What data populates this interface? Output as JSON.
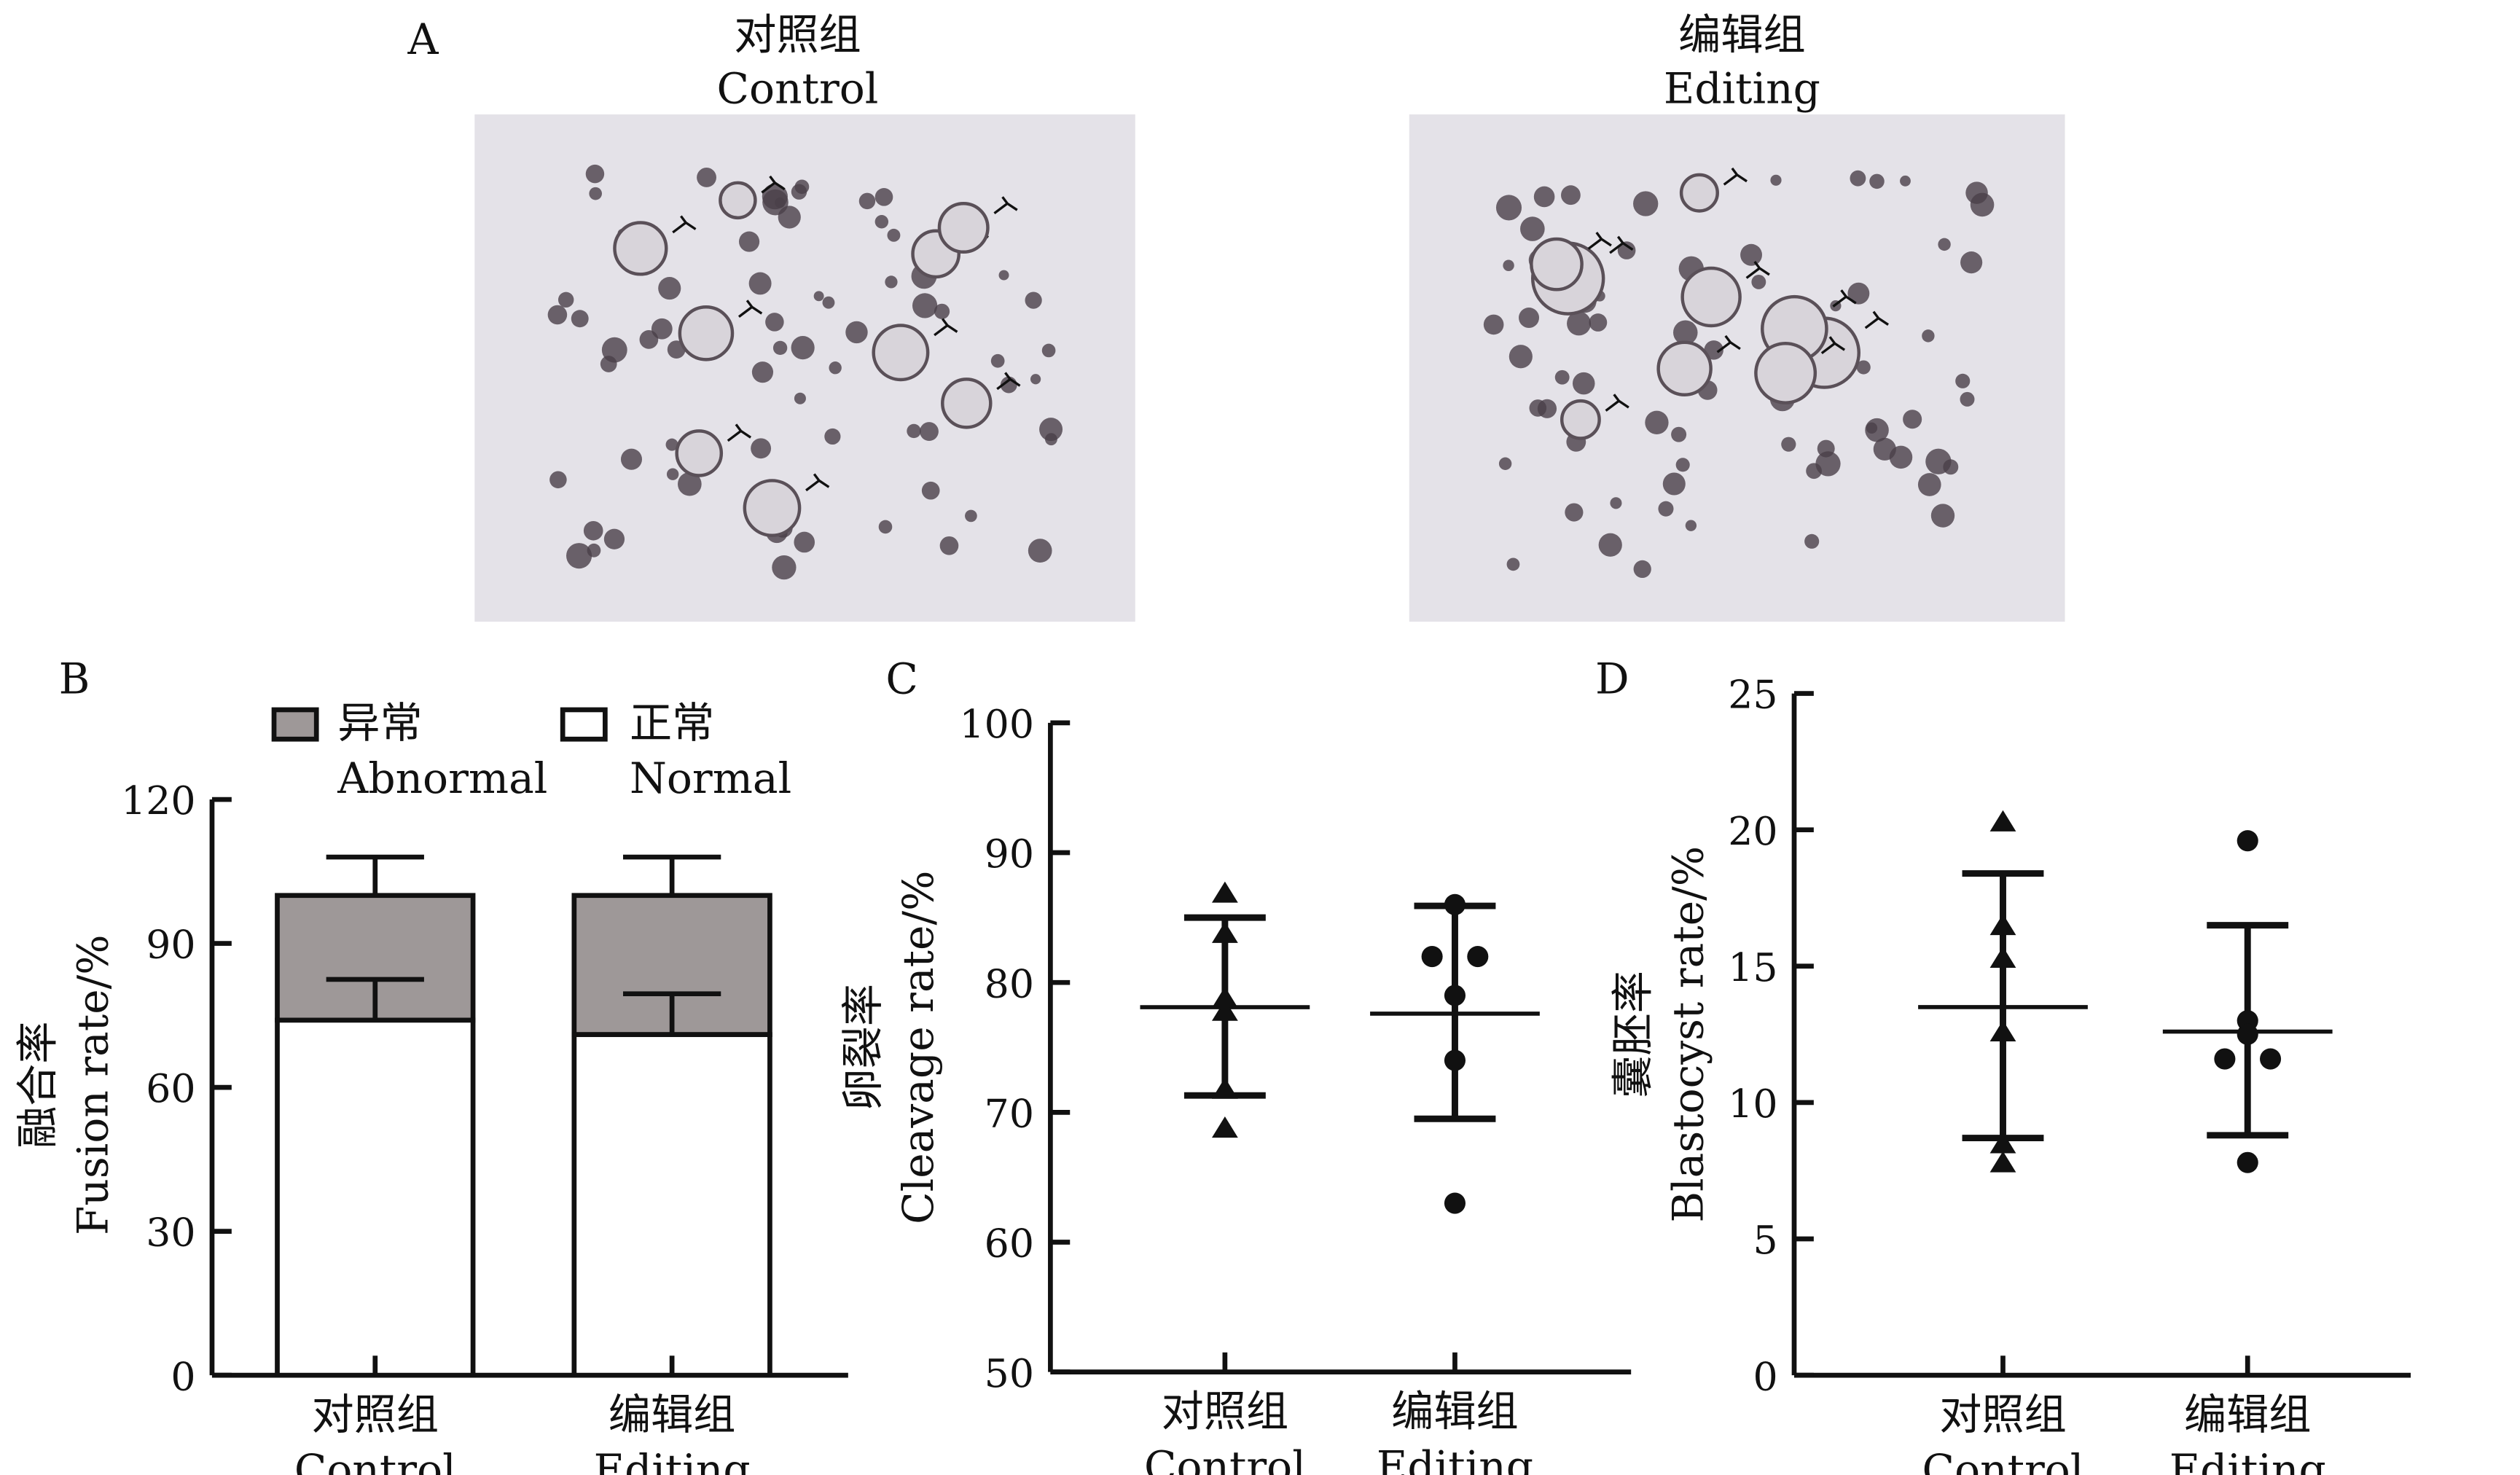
{
  "panels": {
    "a": "A",
    "b": "B",
    "c": "C",
    "d": "D"
  },
  "photos": [
    {
      "title_cn": "对照组",
      "title_en": "Control"
    },
    {
      "title_cn": "编辑组",
      "title_en": "Editing"
    }
  ],
  "colors": {
    "abnormal": "#9e9898",
    "normal": "#ffffff",
    "ink": "#111111",
    "photo_bg": "#e4e2e8"
  },
  "chart_data": [
    {
      "id": "B",
      "type": "bar",
      "stacked": true,
      "categories_cn": [
        "对照组",
        "编辑组"
      ],
      "categories": [
        "Control",
        "Editing"
      ],
      "ylabel_cn": "融合率",
      "ylabel": "Fusion rate/%",
      "ylim": [
        0,
        120
      ],
      "yticks": [
        0,
        30,
        60,
        90,
        120
      ],
      "legend": [
        {
          "cn": "异常",
          "en": "Abnormal"
        },
        {
          "cn": "正常",
          "en": "Normal"
        }
      ],
      "legend_position": "top",
      "series": [
        {
          "name": "Normal",
          "values": [
            74,
            71
          ],
          "err_upper": [
            82.5,
            79.5
          ]
        },
        {
          "name": "Abnormal",
          "values": [
            26,
            29
          ],
          "err_upper": [
            108,
            108
          ]
        }
      ]
    },
    {
      "id": "C",
      "type": "scatter",
      "categories_cn": [
        "对照组",
        "编辑组"
      ],
      "categories": [
        "Control",
        "Editing"
      ],
      "ylabel_cn": "卵裂率",
      "ylabel": "Cleavage rate/%",
      "ylim": [
        50,
        100
      ],
      "yticks": [
        50,
        60,
        70,
        80,
        90,
        100
      ],
      "series": [
        {
          "name": "Control",
          "marker": "triangle",
          "values": [
            86.9,
            83.8,
            78.8,
            77.8,
            71.8,
            68.8
          ],
          "mean": 78.1,
          "sd_high": 85.0,
          "sd_low": 71.3
        },
        {
          "name": "Editing",
          "marker": "circle",
          "values": [
            86.0,
            82.0,
            82.0,
            79.0,
            74.0,
            63.0
          ],
          "mean": 77.6,
          "sd_high": 85.9,
          "sd_low": 69.5
        }
      ]
    },
    {
      "id": "D",
      "type": "scatter",
      "categories_cn": [
        "对照组",
        "编辑组"
      ],
      "categories": [
        "Control",
        "Editing"
      ],
      "ylabel_cn": "囊胚率",
      "ylabel": "Blastocyst rate/%",
      "ylim": [
        0,
        25
      ],
      "yticks": [
        0,
        5,
        10,
        15,
        20,
        25
      ],
      "series": [
        {
          "name": "Control",
          "marker": "triangle",
          "values": [
            20.3,
            16.5,
            15.3,
            12.6,
            8.5,
            7.8
          ],
          "mean": 13.5,
          "sd_high": 18.4,
          "sd_low": 8.7
        },
        {
          "name": "Editing",
          "marker": "circle",
          "values": [
            19.6,
            13.0,
            12.5,
            11.6,
            11.6,
            7.8
          ],
          "mean": 12.6,
          "sd_high": 16.5,
          "sd_low": 8.8
        }
      ]
    }
  ]
}
